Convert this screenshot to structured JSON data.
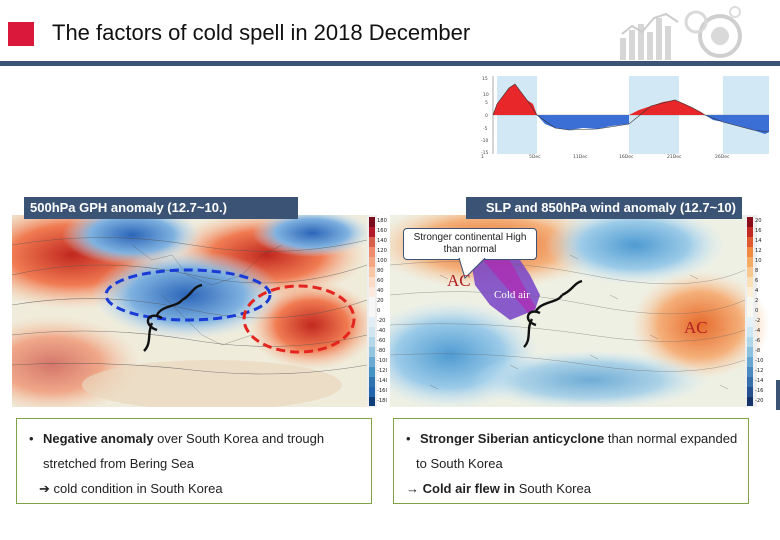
{
  "title": "The factors of cold spell in 2018 December",
  "panels": {
    "left_label": "500hPa GPH anomaly (12.7~10.)",
    "right_label": "SLP and 850hPa wind anomaly (12.7~10)"
  },
  "callout": "Stronger continental High than normal",
  "map_annotations": {
    "ac": "AC",
    "cold_air": "Cold air"
  },
  "left_colorbar_ticks": [
    "180",
    "160",
    "140",
    "120",
    "100",
    "80",
    "60",
    "40",
    "20",
    "0",
    "-20",
    "-40",
    "-60",
    "-80",
    "-100",
    "-120",
    "-140",
    "-160",
    "-180"
  ],
  "right_colorbar_ticks": [
    "20",
    "16",
    "14",
    "12",
    "10",
    "8",
    "6",
    "4",
    "2",
    "0",
    "-2",
    "-4",
    "-6",
    "-8",
    "-10",
    "-12",
    "-14",
    "-16",
    "-20"
  ],
  "timeseries": {
    "y_ticks": [
      "15",
      "10",
      "5",
      "0",
      "-5",
      "-10",
      "-15"
    ],
    "x_ticks": [
      "1 Dec 2018",
      "5Dec",
      "11Dec",
      "16Dec",
      "21Dec",
      "26Dec"
    ]
  },
  "left_text": {
    "bullet": "•",
    "line1_bold": "Negative anomaly",
    "line1_rest": " over South Korea and trough",
    "line2": "stretched from Bering Sea",
    "line3_arrow": "➔",
    "line3": " cold condition in South Korea"
  },
  "right_text": {
    "bullet": "•",
    "line1_bold": "Stronger Siberian anticyclone",
    "line1_rest": " than normal expanded",
    "line2": "to South Korea",
    "line3_arrow": "→",
    "line3_bold": " Cold air flew in",
    "line3_rest": " South Korea"
  },
  "colors": {
    "accent": "#d9183b",
    "bar": "#3b5374",
    "box_border": "#7ea244"
  }
}
